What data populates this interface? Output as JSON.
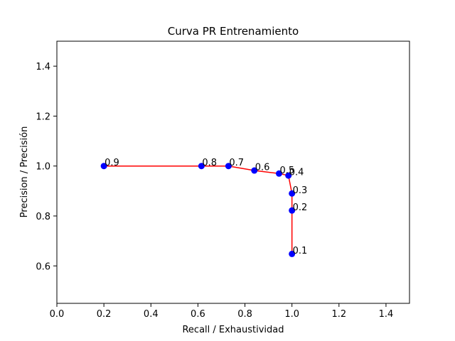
{
  "chart_data": {
    "type": "line",
    "title": "Curva PR Entrenamiento",
    "xlabel": "Recall / Exhaustividad",
    "ylabel": "Precision / Precisión",
    "xlim": [
      0.0,
      1.5
    ],
    "ylim": [
      0.45,
      1.5
    ],
    "xticks": [
      0.0,
      0.2,
      0.4,
      0.6,
      0.8,
      1.0,
      1.2,
      1.4
    ],
    "yticks": [
      0.6,
      0.8,
      1.0,
      1.2,
      1.4
    ],
    "grid": false,
    "legend": null,
    "line_color": "#ff0000",
    "marker_color": "#0000ff",
    "series": [
      {
        "points": [
          {
            "x": 0.2,
            "y": 1.0,
            "label": "0.9"
          },
          {
            "x": 0.615,
            "y": 1.0,
            "label": "0.8"
          },
          {
            "x": 0.73,
            "y": 1.0,
            "label": "0.7"
          },
          {
            "x": 0.84,
            "y": 0.982,
            "label": "0.6"
          },
          {
            "x": 0.945,
            "y": 0.97,
            "label": "0.5"
          },
          {
            "x": 0.985,
            "y": 0.962,
            "label": "0.4"
          },
          {
            "x": 1.0,
            "y": 0.89,
            "label": "0.3"
          },
          {
            "x": 1.0,
            "y": 0.822,
            "label": "0.2"
          },
          {
            "x": 1.0,
            "y": 0.648,
            "label": "0.1"
          }
        ]
      }
    ]
  }
}
